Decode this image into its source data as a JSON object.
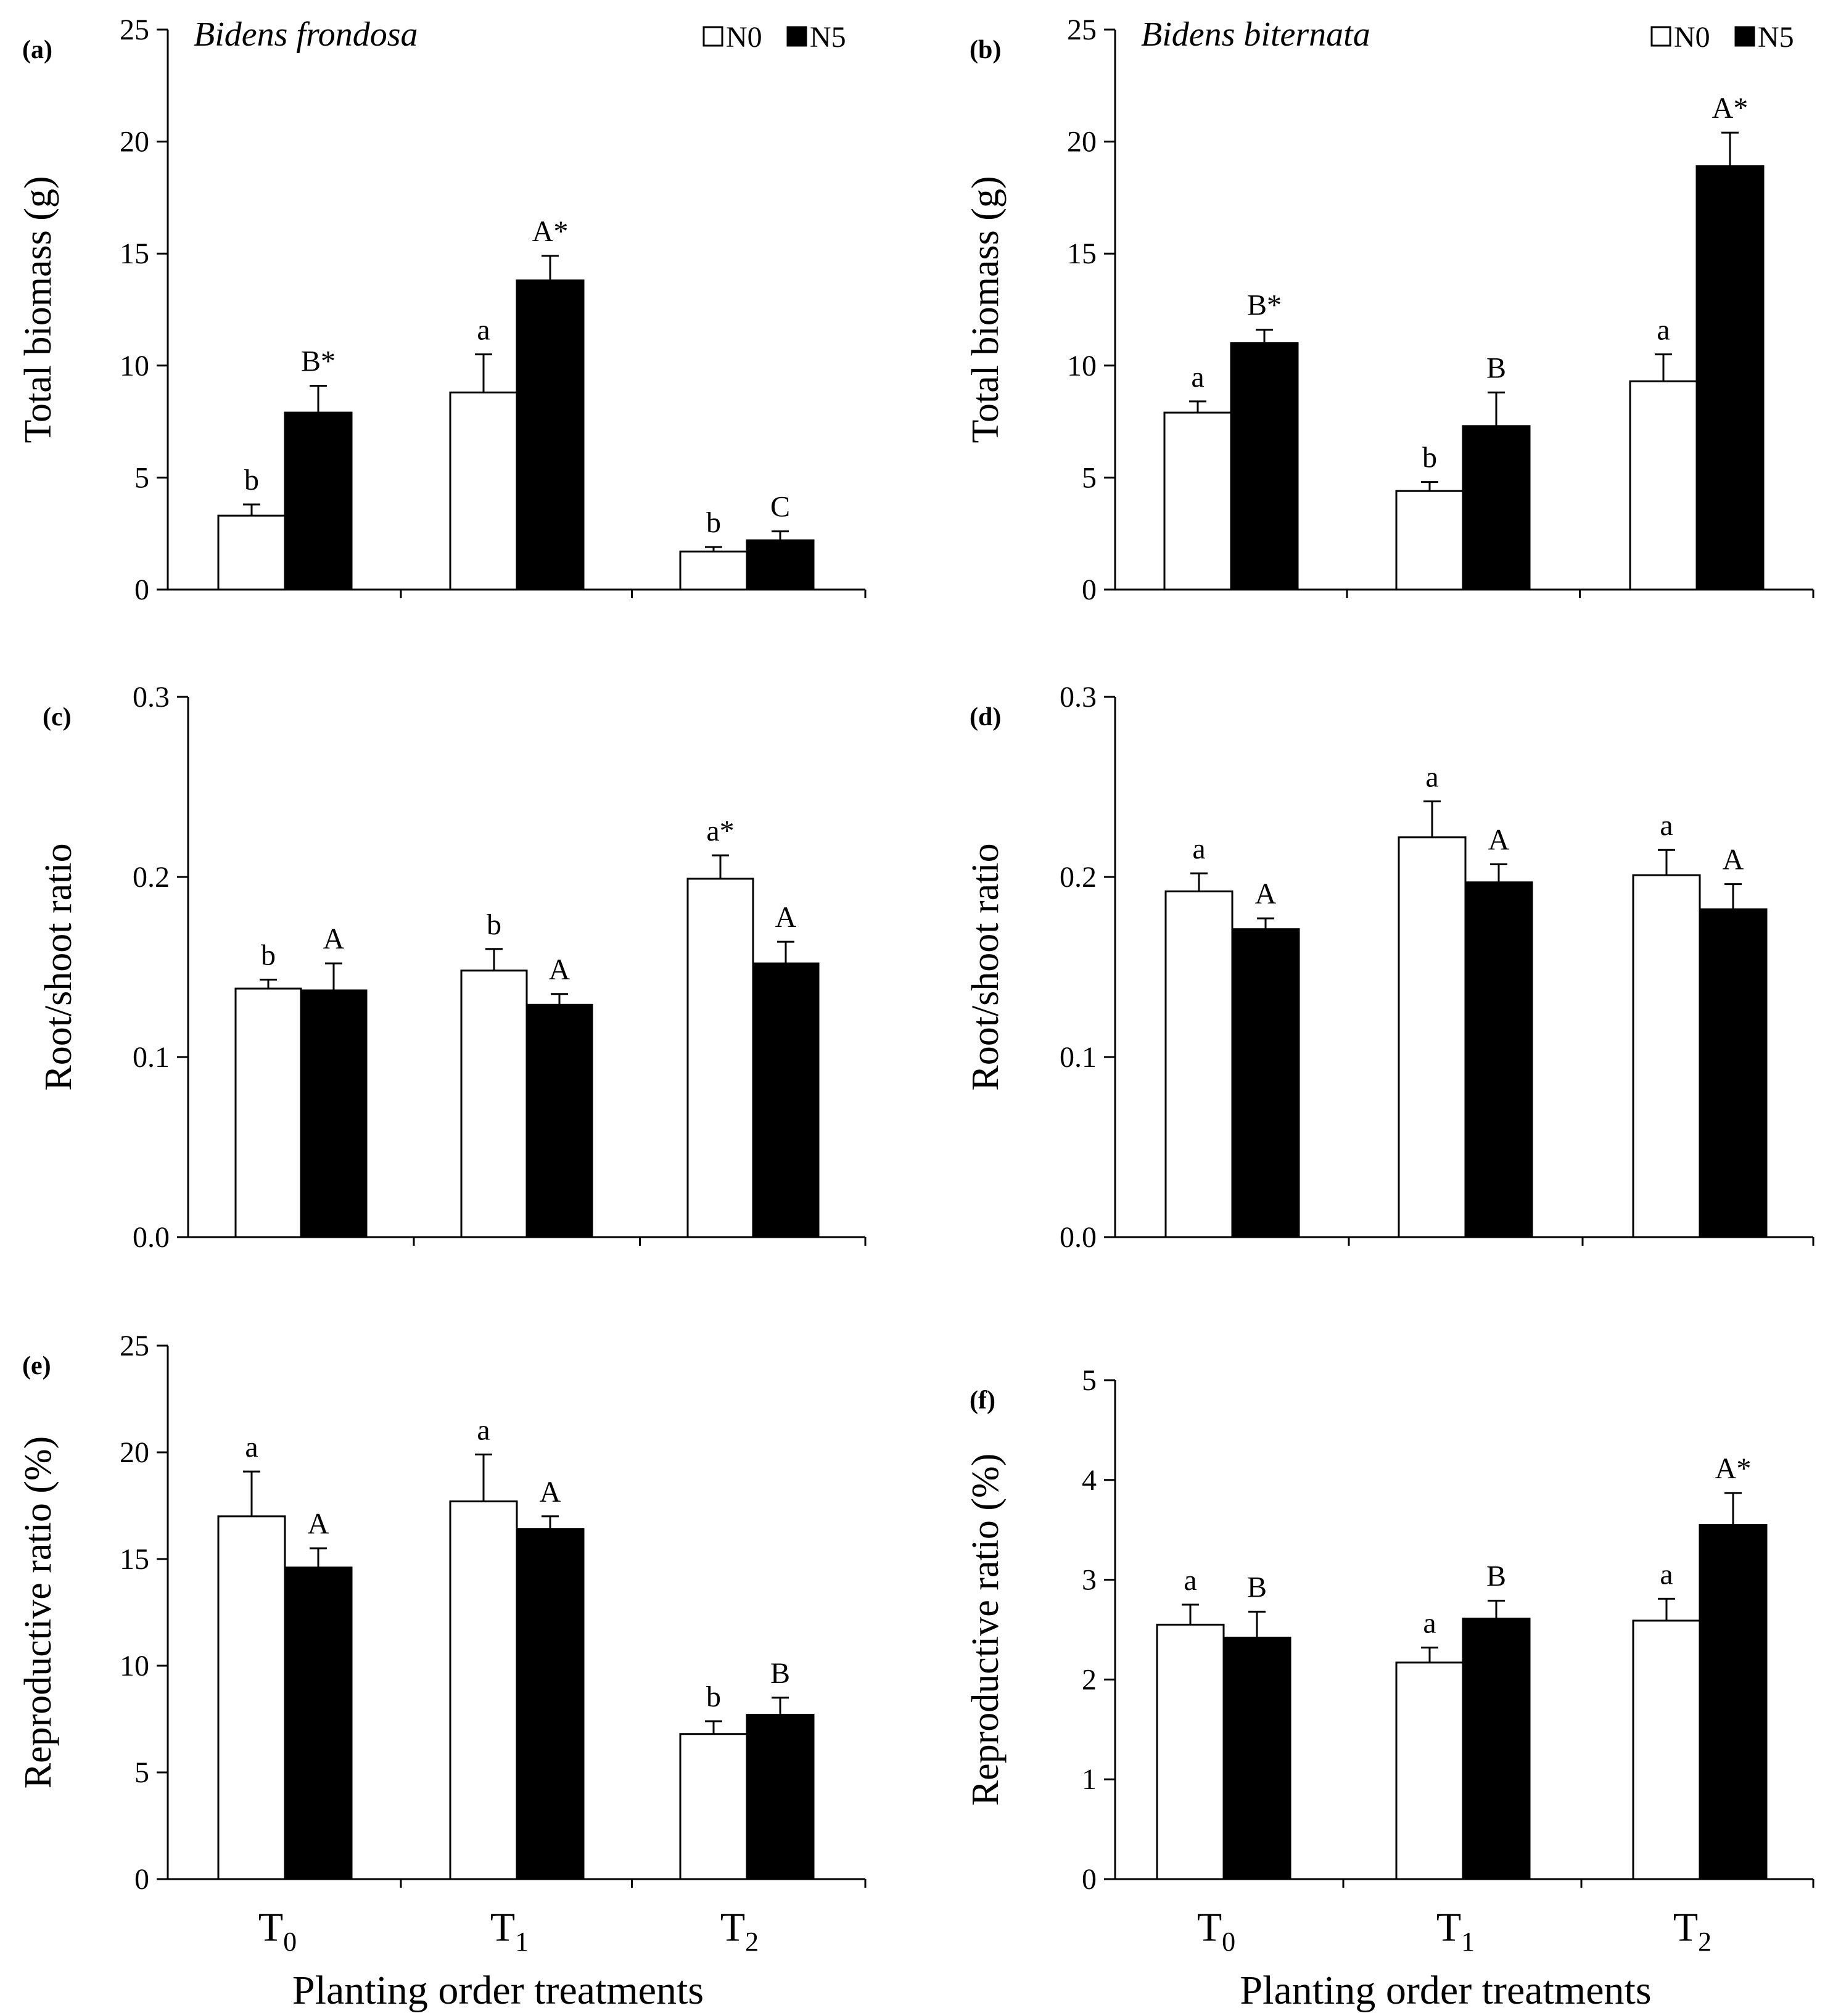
{
  "legend": [
    {
      "label": "N0",
      "fill": "#ffffff"
    },
    {
      "label": "N5",
      "fill": "#000000"
    }
  ],
  "xlabel": "Planting order treatments",
  "categories": [
    {
      "main": "T",
      "sub": "0"
    },
    {
      "main": "T",
      "sub": "1"
    },
    {
      "main": "T",
      "sub": "2"
    }
  ],
  "chart_data": [
    {
      "type": "bar",
      "panel": "(a)",
      "title": "Bidens frondosa",
      "ylabel": "Total biomass (g)",
      "ylim": [
        0,
        25
      ],
      "yticks": [
        "0",
        "5",
        "10",
        "15",
        "20",
        "25"
      ],
      "categories": [
        "T0",
        "T1",
        "T2"
      ],
      "legend_position": "top-right",
      "series": [
        {
          "name": "N0",
          "values": [
            3.3,
            8.8,
            1.7
          ],
          "errors": [
            0.5,
            1.7,
            0.2
          ],
          "labels": [
            "b",
            "a",
            "b"
          ]
        },
        {
          "name": "N5",
          "values": [
            7.9,
            13.8,
            2.2
          ],
          "errors": [
            1.2,
            1.1,
            0.4
          ],
          "labels": [
            "B*",
            "A*",
            "C"
          ]
        }
      ]
    },
    {
      "type": "bar",
      "panel": "(b)",
      "title": "Bidens biternata",
      "ylabel": "Total biomass (g)",
      "ylim": [
        0,
        25
      ],
      "yticks": [
        "0",
        "5",
        "10",
        "15",
        "20",
        "25"
      ],
      "categories": [
        "T0",
        "T1",
        "T2"
      ],
      "legend_position": "top-right",
      "series": [
        {
          "name": "N0",
          "values": [
            7.9,
            4.4,
            9.3
          ],
          "errors": [
            0.5,
            0.4,
            1.2
          ],
          "labels": [
            "a",
            "b",
            "a"
          ]
        },
        {
          "name": "N5",
          "values": [
            11.0,
            7.3,
            18.9
          ],
          "errors": [
            0.6,
            1.5,
            1.5
          ],
          "labels": [
            "B*",
            "B",
            "A*"
          ]
        }
      ]
    },
    {
      "type": "bar",
      "panel": "(c)",
      "title": "",
      "ylabel": "Root/shoot ratio",
      "ylim": [
        0,
        0.3
      ],
      "yticks": [
        "0.0",
        "0.1",
        "0.2",
        "0.3"
      ],
      "categories": [
        "T0",
        "T1",
        "T2"
      ],
      "series": [
        {
          "name": "N0",
          "values": [
            0.138,
            0.148,
            0.199
          ],
          "errors": [
            0.005,
            0.012,
            0.013
          ],
          "labels": [
            "b",
            "b",
            "a*"
          ]
        },
        {
          "name": "N5",
          "values": [
            0.137,
            0.129,
            0.152
          ],
          "errors": [
            0.015,
            0.006,
            0.012
          ],
          "labels": [
            "A",
            "A",
            "A"
          ]
        }
      ]
    },
    {
      "type": "bar",
      "panel": "(d)",
      "title": "",
      "ylabel": "Root/shoot ratio",
      "ylim": [
        0,
        0.3
      ],
      "yticks": [
        "0.0",
        "0.1",
        "0.2",
        "0.3"
      ],
      "categories": [
        "T0",
        "T1",
        "T2"
      ],
      "series": [
        {
          "name": "N0",
          "values": [
            0.192,
            0.222,
            0.201
          ],
          "errors": [
            0.01,
            0.02,
            0.014
          ],
          "labels": [
            "a",
            "a",
            "a"
          ]
        },
        {
          "name": "N5",
          "values": [
            0.171,
            0.197,
            0.182
          ],
          "errors": [
            0.006,
            0.01,
            0.014
          ],
          "labels": [
            "A",
            "A",
            "A"
          ]
        }
      ]
    },
    {
      "type": "bar",
      "panel": "(e)",
      "title": "",
      "ylabel": "Reproductive ratio (%)",
      "ylim": [
        0,
        25
      ],
      "yticks": [
        "0",
        "5",
        "10",
        "15",
        "20",
        "25"
      ],
      "categories": [
        "T0",
        "T1",
        "T2"
      ],
      "series": [
        {
          "name": "N0",
          "values": [
            17.0,
            17.7,
            6.8
          ],
          "errors": [
            2.1,
            2.2,
            0.6
          ],
          "labels": [
            "a",
            "a",
            "b"
          ]
        },
        {
          "name": "N5",
          "values": [
            14.6,
            16.4,
            7.7
          ],
          "errors": [
            0.9,
            0.6,
            0.8
          ],
          "labels": [
            "A",
            "A",
            "B"
          ]
        }
      ]
    },
    {
      "type": "bar",
      "panel": "(f)",
      "title": "",
      "ylabel": "Reproductive ratio (%)",
      "ylim": [
        0,
        5
      ],
      "yticks": [
        "0",
        "1",
        "2",
        "3",
        "4",
        "5"
      ],
      "categories": [
        "T0",
        "T1",
        "T2"
      ],
      "series": [
        {
          "name": "N0",
          "values": [
            2.55,
            2.17,
            2.59
          ],
          "errors": [
            0.2,
            0.15,
            0.22
          ],
          "labels": [
            "a",
            "a",
            "a"
          ]
        },
        {
          "name": "N5",
          "values": [
            2.42,
            2.61,
            3.55
          ],
          "errors": [
            0.26,
            0.18,
            0.32
          ],
          "labels": [
            "B",
            "B",
            "A*"
          ]
        }
      ]
    }
  ]
}
